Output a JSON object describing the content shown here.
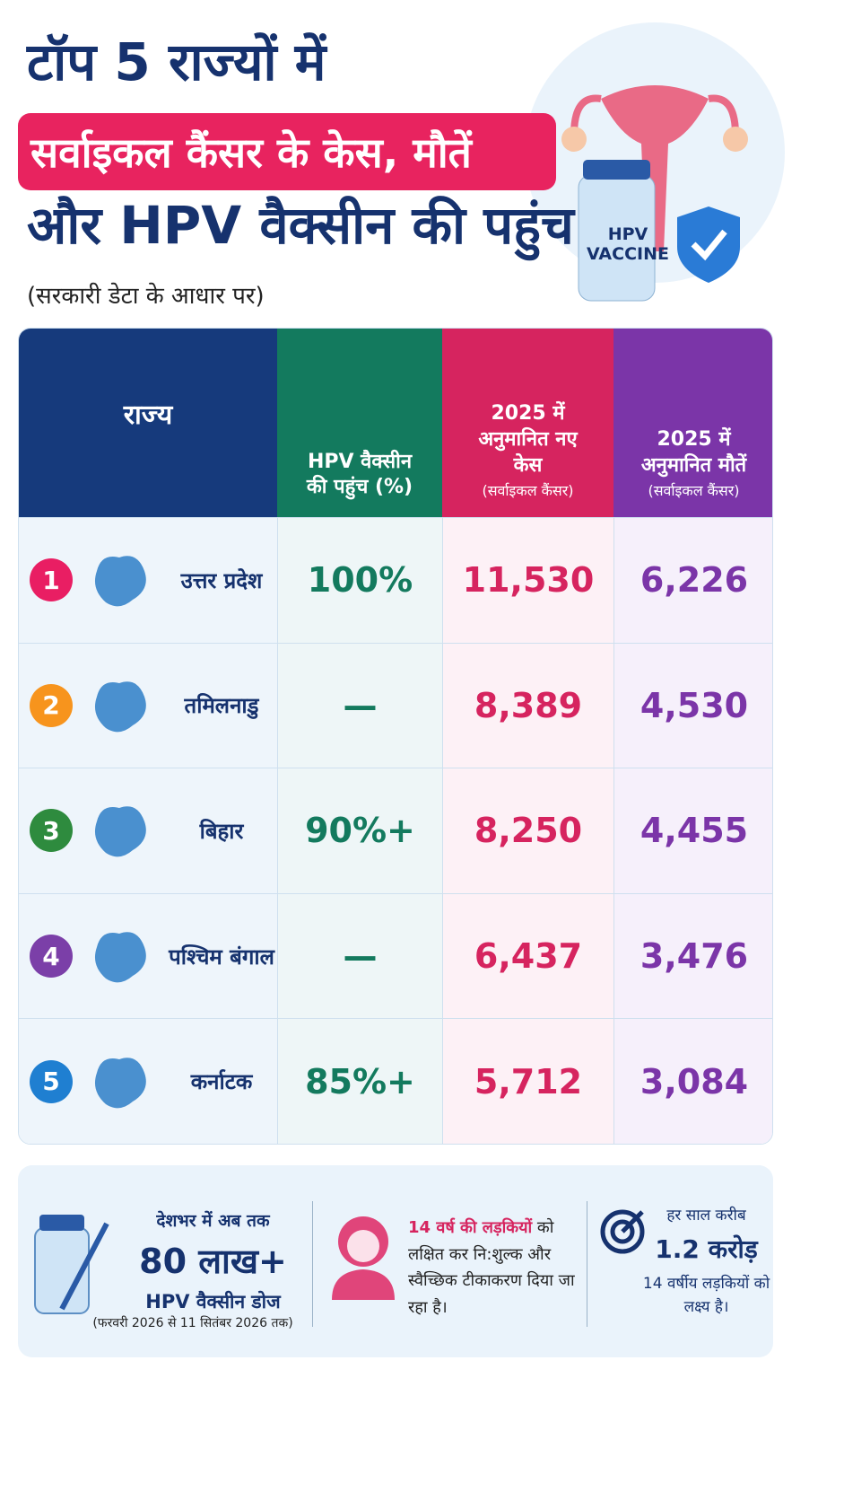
{
  "header": {
    "title_line1": "टॉप 5 राज्यों में",
    "title_line2": "सर्वाइकल कैंसर के केस, मौतें",
    "title_line3": "और HPV वैक्सीन की पहुंच",
    "subtitle": "(सरकारी डेटा के आधार पर)",
    "vial_label": "HPV VACCINE"
  },
  "table": {
    "columns": [
      {
        "title": "राज्य"
      },
      {
        "title": "HPV वैक्सीन की पहुंच (%)"
      },
      {
        "title": "2025 में अनुमानित नए केस",
        "note": "(सर्वाइकल कैंसर)"
      },
      {
        "title": "2025 में अनुमानित मौतें",
        "note": "(सर्वाइकल कैंसर)"
      }
    ],
    "rows": [
      [
        "1",
        "उत्तर प्रदेश",
        "100%",
        "11,530",
        "6,226"
      ],
      [
        "2",
        "तमिलनाडु",
        "—",
        "8,389",
        "4,530"
      ],
      [
        "3",
        "बिहार",
        "90%+",
        "8,250",
        "4,455"
      ],
      [
        "4",
        "पश्चिम बंगाल",
        "—",
        "6,437",
        "3,476"
      ],
      [
        "5",
        "कर्नाटक",
        "85%+",
        "5,712",
        "3,084"
      ]
    ]
  },
  "footer": {
    "doses": {
      "lead": "देशभर में अब तक",
      "figure": "80 लाख+",
      "label": "HPV वैक्सीन डोज",
      "period": "(फरवरी 2026 से 11 सितंबर 2026 तक)"
    },
    "girls": {
      "highlight": "14 वर्ष की लड़कियों",
      "text": "को लक्षित कर नि:शुल्क और स्वैच्छिक टीकाकरण दिया जा रहा है।"
    },
    "target": {
      "lead": "हर साल करीब",
      "figure": "1.2 करोड़",
      "text": "14 वर्षीय लड़कियों को लक्ष्य है।"
    }
  }
}
